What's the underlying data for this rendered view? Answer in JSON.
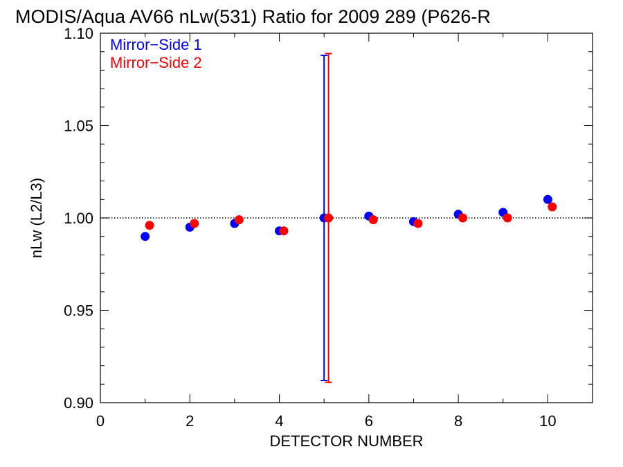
{
  "chart_data": {
    "type": "scatter",
    "title": "MODIS/Aqua AV66 nLw(531) Ratio for 2009 289 (P626-R",
    "xlabel": "DETECTOR NUMBER",
    "ylabel": "nLw (L2/L3)",
    "xlim": [
      0,
      11
    ],
    "ylim": [
      0.9,
      1.1
    ],
    "x_ticks": [
      0,
      2,
      4,
      6,
      8,
      10
    ],
    "x_tick_labels": [
      "0",
      "2",
      "4",
      "6",
      "8",
      "10"
    ],
    "y_ticks": [
      0.9,
      0.95,
      1.0,
      1.05,
      1.1
    ],
    "y_tick_labels": [
      "0.90",
      "0.95",
      "1.00",
      "1.05",
      "1.10"
    ],
    "reference_line": {
      "y": 1.0,
      "style": "dotted"
    },
    "legend_position": "top-left",
    "grid": false,
    "series": [
      {
        "name": "Mirror−Side 1",
        "color": "#0000ff",
        "x": [
          1,
          2,
          3,
          4,
          5,
          6,
          7,
          8,
          9,
          10
        ],
        "y": [
          0.99,
          0.995,
          0.997,
          0.993,
          1.0,
          1.001,
          0.998,
          1.002,
          1.003,
          1.01
        ],
        "error_bars": [
          {
            "x": 5,
            "low": 0.912,
            "high": 1.088
          }
        ]
      },
      {
        "name": "Mirror−Side 2",
        "color": "#ff0000",
        "x": [
          1.1,
          2.1,
          3.1,
          4.1,
          5.1,
          6.1,
          7.1,
          8.1,
          9.1,
          10.1
        ],
        "y": [
          0.996,
          0.997,
          0.999,
          0.993,
          1.0,
          0.999,
          0.997,
          1.0,
          1.0,
          1.006
        ],
        "error_bars": [
          {
            "x": 5.1,
            "low": 0.911,
            "high": 1.089
          }
        ]
      }
    ]
  }
}
